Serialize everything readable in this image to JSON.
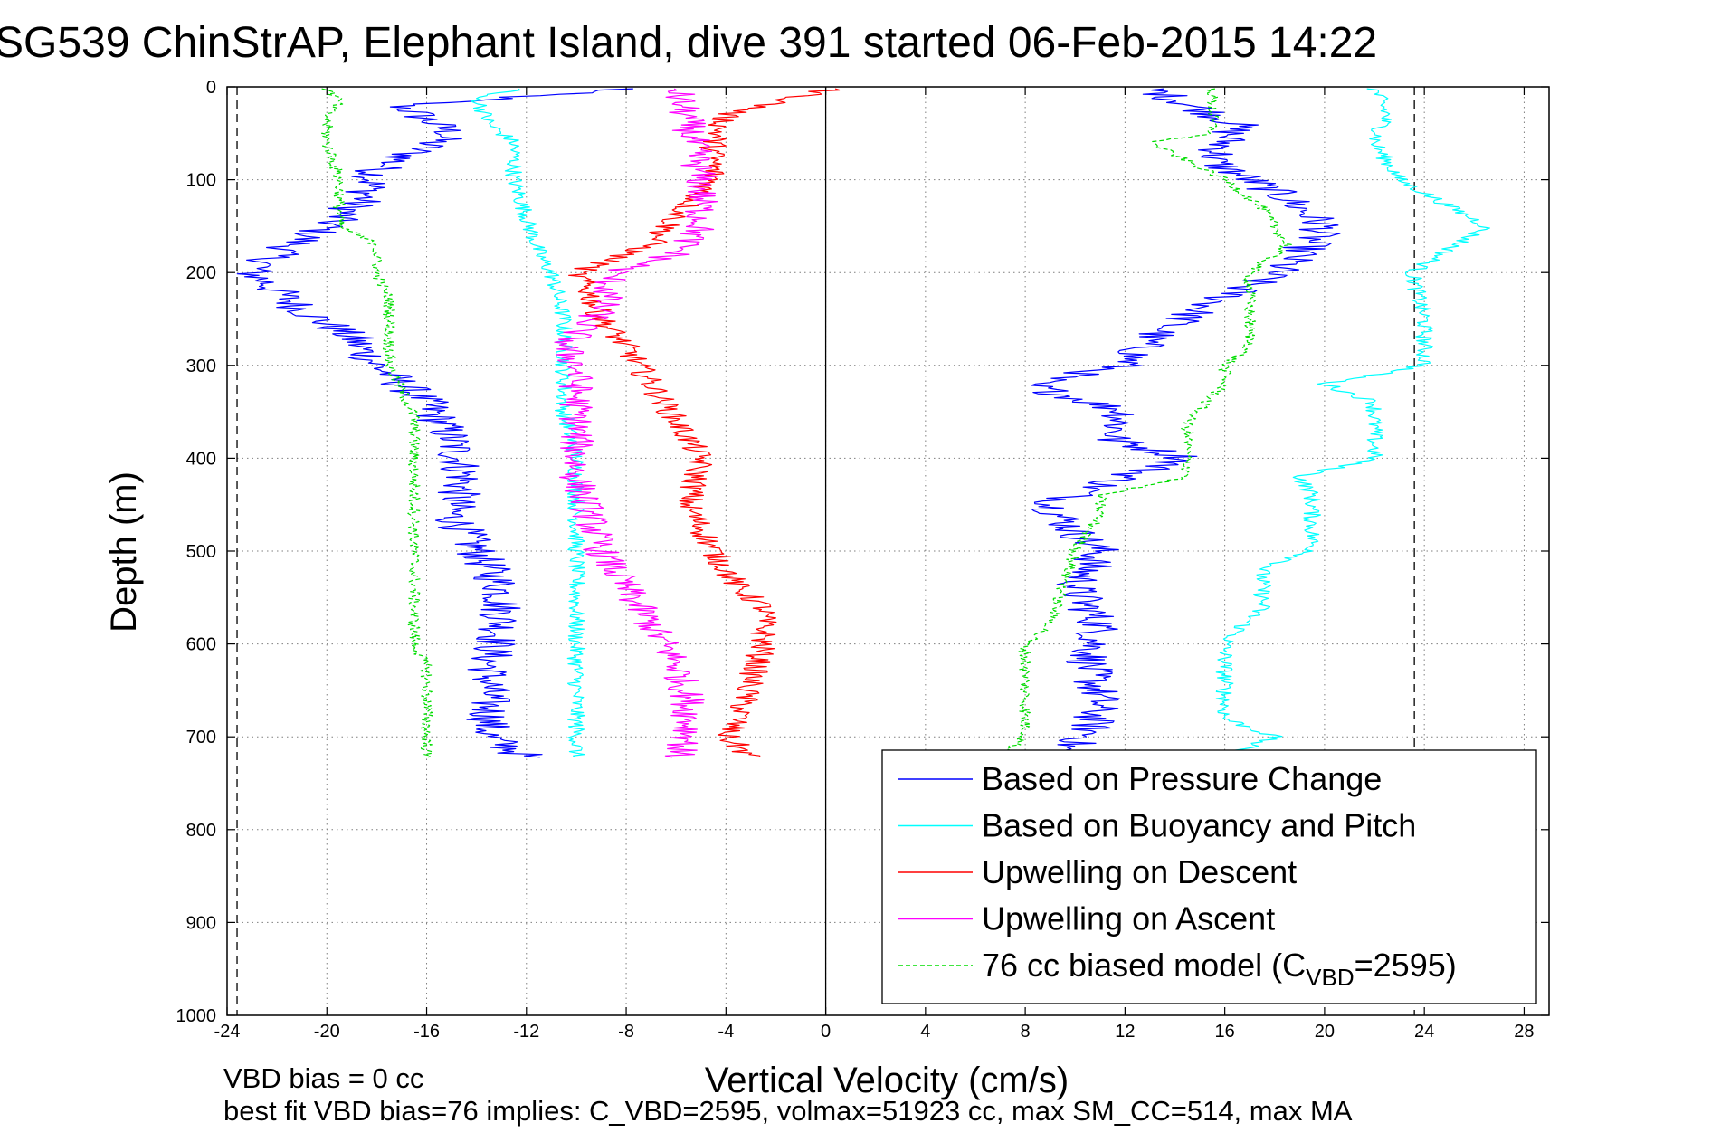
{
  "chart_data": {
    "type": "line",
    "title": "SG539 ChinStrAP, Elephant Island, dive 391 started 06-Feb-2015 14:22",
    "xlabel": "Vertical Velocity (cm/s)",
    "ylabel": "Depth (m)",
    "xlim": [
      -24,
      29
    ],
    "ylim": [
      0,
      1000
    ],
    "y_reversed": true,
    "xticks": [
      -24,
      -20,
      -16,
      -12,
      -8,
      -4,
      0,
      4,
      8,
      12,
      16,
      20,
      24,
      28
    ],
    "yticks": [
      0,
      100,
      200,
      300,
      400,
      500,
      600,
      700,
      800,
      900,
      1000
    ],
    "grid": true,
    "legend_position": "lower-right",
    "vertical_lines": [
      {
        "x": -23.6,
        "style": "dashed",
        "color": "#000000"
      },
      {
        "x": 0,
        "style": "solid",
        "color": "#000000"
      },
      {
        "x": 23.6,
        "style": "dashed",
        "color": "#000000"
      }
    ],
    "series": [
      {
        "name": "Based on Pressure Change",
        "color": "#0000ff",
        "style": "solid",
        "noise": 0.9,
        "descent": {
          "depth": [
            2,
            20,
            50,
            90,
            120,
            150,
            180,
            200,
            240,
            270,
            300,
            340,
            380,
            420,
            460,
            500,
            540,
            580,
            620,
            660,
            700,
            722
          ],
          "x": [
            -8,
            -17,
            -15,
            -18,
            -18.5,
            -20,
            -22,
            -23,
            -21,
            -19,
            -18,
            -16,
            -15,
            -14.5,
            -15,
            -14,
            -13,
            -13,
            -13.5,
            -13.5,
            -13.5,
            -12
          ]
        },
        "ascent": {
          "depth": [
            2,
            40,
            80,
            100,
            120,
            150,
            180,
            200,
            240,
            270,
            300,
            320,
            350,
            380,
            400,
            420,
            450,
            480,
            500,
            540,
            580,
            620,
            660,
            700,
            720
          ],
          "x": [
            13,
            16.5,
            15.5,
            17,
            18.5,
            20,
            19,
            18,
            15,
            13,
            12,
            8,
            12,
            11.5,
            14.5,
            12,
            9,
            10,
            11,
            10,
            11,
            10.5,
            11,
            10.5,
            9
          ]
        }
      },
      {
        "name": "Based on Buoyancy and Pitch",
        "color": "#00ffff",
        "style": "solid",
        "noise": 0.35,
        "descent": {
          "depth": [
            2,
            10,
            40,
            60,
            100,
            140,
            180,
            200,
            250,
            300,
            350,
            400,
            450,
            500,
            550,
            600,
            650,
            700,
            722
          ],
          "x": [
            -12,
            -14,
            -13.5,
            -12.5,
            -12.5,
            -12,
            -11.5,
            -11,
            -10.5,
            -10.5,
            -10.5,
            -10,
            -10,
            -10,
            -10,
            -10,
            -10,
            -10,
            -10
          ]
        },
        "ascent": {
          "depth": [
            2,
            30,
            60,
            100,
            150,
            200,
            250,
            300,
            320,
            340,
            400,
            420,
            440,
            500,
            520,
            560,
            600,
            640,
            680,
            700,
            720
          ],
          "x": [
            22,
            22.5,
            22,
            23,
            26.5,
            23.5,
            24,
            24,
            20,
            22,
            22,
            19,
            19.5,
            19.5,
            17.5,
            17.5,
            16,
            16,
            16,
            18,
            16
          ]
        }
      },
      {
        "name": "Upwelling on Descent",
        "color": "#ff0000",
        "style": "solid",
        "noise": 0.55,
        "descent": {
          "depth": [
            2,
            30,
            60,
            100,
            140,
            170,
            200,
            220,
            250,
            280,
            320,
            360,
            400,
            450,
            500,
            540,
            560,
            600,
            640,
            680,
            700,
            722
          ],
          "x": [
            0.3,
            -4,
            -4.5,
            -4.5,
            -6,
            -7,
            -10,
            -9.5,
            -9,
            -8,
            -7,
            -6,
            -5,
            -5.5,
            -4.5,
            -3.5,
            -2.5,
            -2.5,
            -3,
            -3.5,
            -4,
            -3
          ]
        }
      },
      {
        "name": "Upwelling on Ascent",
        "color": "#ff00ff",
        "style": "solid",
        "noise": 0.7,
        "descent": {
          "depth": [
            2,
            40,
            100,
            150,
            180,
            200,
            240,
            280,
            300,
            340,
            380,
            420,
            460,
            500,
            540,
            580,
            620,
            660,
            700,
            722
          ],
          "x": [
            -6,
            -5.5,
            -5,
            -5,
            -6,
            -8.5,
            -9,
            -10.5,
            -10,
            -10,
            -10,
            -10,
            -9.5,
            -9,
            -8,
            -7,
            -6,
            -5.5,
            -5.5,
            -6
          ]
        }
      },
      {
        "name": "76 cc biased model (C",
        "name_sub": "VBD",
        "name_end": "=2595)",
        "color": "#00dd00",
        "style": "dashed",
        "noise": 0.25,
        "descent": {
          "depth": [
            2,
            15,
            30,
            60,
            100,
            150,
            170,
            200,
            230,
            260,
            300,
            355,
            400,
            430,
            500,
            550,
            600,
            625,
            700,
            722
          ],
          "x": [
            -20,
            -19.5,
            -20,
            -20,
            -19.5,
            -19.5,
            -18,
            -18,
            -17.5,
            -17.5,
            -17.5,
            -16.5,
            -16.5,
            -16.5,
            -16.5,
            -16.5,
            -16.5,
            -16,
            -16,
            -16
          ]
        },
        "ascent": {
          "depth": [
            2,
            50,
            60,
            100,
            130,
            170,
            200,
            240,
            280,
            300,
            320,
            360,
            400,
            420,
            440,
            460,
            500,
            540,
            580,
            600,
            640,
            660,
            700,
            722
          ],
          "x": [
            15.5,
            15.5,
            13,
            16,
            17.5,
            18.5,
            17,
            17,
            17,
            16,
            16,
            14.5,
            14.5,
            14.5,
            11,
            11,
            10,
            9.5,
            9,
            8,
            8,
            8,
            8,
            7
          ]
        }
      }
    ],
    "annotations": [
      "VBD bias = 0 cc",
      "best fit VBD bias=76 implies: C_VBD=2595, volmax=51923 cc, max SM_CC=514, max MA"
    ]
  }
}
